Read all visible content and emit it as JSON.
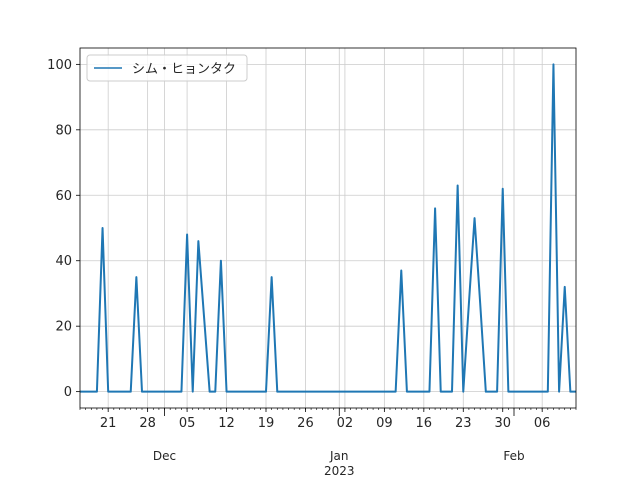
{
  "chart_data": {
    "type": "line",
    "title": "",
    "xlabel": "",
    "ylabel": "",
    "ylim": [
      -5,
      105
    ],
    "xlim": [
      "2022-11-16",
      "2023-02-12"
    ],
    "grid": true,
    "legend_placement": "upper-left",
    "yticks": [
      0,
      20,
      40,
      60,
      80,
      100
    ],
    "xticks_major": [
      {
        "date": "2022-11-21",
        "label": "21"
      },
      {
        "date": "2022-11-28",
        "label": "28"
      },
      {
        "date": "2022-12-05",
        "label": "05"
      },
      {
        "date": "2022-12-12",
        "label": "12"
      },
      {
        "date": "2022-12-19",
        "label": "19"
      },
      {
        "date": "2022-12-26",
        "label": "26"
      },
      {
        "date": "2023-01-02",
        "label": "02"
      },
      {
        "date": "2023-01-09",
        "label": "09"
      },
      {
        "date": "2023-01-16",
        "label": "16"
      },
      {
        "date": "2023-01-23",
        "label": "23"
      },
      {
        "date": "2023-01-30",
        "label": "30"
      },
      {
        "date": "2023-02-06",
        "label": "06"
      }
    ],
    "month_labels": [
      {
        "date": "2022-12-01",
        "label": "Dec",
        "sub": ""
      },
      {
        "date": "2023-01-01",
        "label": "Jan",
        "sub": "2023"
      },
      {
        "date": "2023-02-01",
        "label": "Feb",
        "sub": ""
      }
    ],
    "series": [
      {
        "name": "シム・ヒョンタク",
        "color": "#1f77b4",
        "start": "2022-11-16",
        "frequency": "daily",
        "values": [
          0,
          0,
          0,
          0,
          50,
          0,
          0,
          0,
          0,
          0,
          35,
          0,
          0,
          0,
          0,
          0,
          0,
          0,
          0,
          48,
          0,
          46,
          23,
          0,
          0,
          40,
          0,
          0,
          0,
          0,
          0,
          0,
          0,
          0,
          35,
          0,
          0,
          0,
          0,
          0,
          0,
          0,
          0,
          0,
          0,
          0,
          0,
          0,
          0,
          0,
          0,
          0,
          0,
          0,
          0,
          0,
          0,
          37,
          0,
          0,
          0,
          0,
          0,
          56,
          0,
          0,
          0,
          63,
          0,
          27,
          53,
          27,
          0,
          0,
          0,
          62,
          0,
          0,
          0,
          0,
          0,
          0,
          0,
          0,
          100,
          0,
          32,
          0,
          0
        ]
      }
    ]
  }
}
